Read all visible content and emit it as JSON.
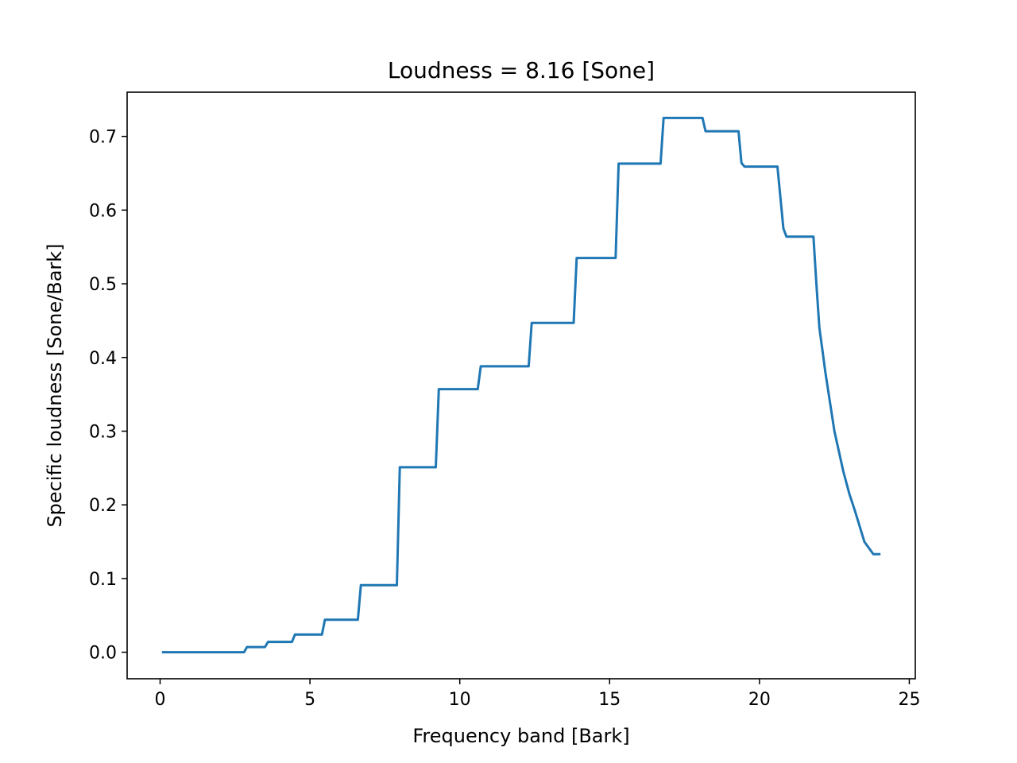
{
  "chart_data": {
    "type": "line",
    "title": "Loudness = 8.16 [Sone]",
    "xlabel": "Frequency band [Bark]",
    "ylabel": "Specific loudness [Sone/Bark]",
    "xlim": [
      -1.1,
      25.2
    ],
    "ylim": [
      -0.036,
      0.76
    ],
    "xticks": [
      0,
      5,
      10,
      15,
      20,
      25
    ],
    "yticks": [
      0.0,
      0.1,
      0.2,
      0.3,
      0.4,
      0.5,
      0.6,
      0.7
    ],
    "xtick_labels": [
      "0",
      "5",
      "10",
      "15",
      "20",
      "25"
    ],
    "ytick_labels": [
      "0.0",
      "0.1",
      "0.2",
      "0.3",
      "0.4",
      "0.5",
      "0.6",
      "0.7"
    ],
    "grid": false,
    "legend": "none",
    "color": "#1f77b4",
    "series": [
      {
        "x": [
          0.1,
          2.8,
          2.9,
          3.5,
          3.6,
          4.4,
          4.5,
          5.4,
          5.5,
          6.6,
          6.7,
          7.9,
          8.0,
          9.2,
          9.3,
          10.6,
          10.7,
          12.3,
          12.4,
          13.8,
          13.9,
          15.2,
          15.3,
          16.7,
          16.8,
          18.1,
          18.2,
          19.3,
          19.4,
          19.5,
          20.6,
          20.8,
          20.9,
          21.8,
          21.9,
          22.0,
          22.1,
          22.2,
          22.5,
          22.8,
          23.0,
          23.2,
          23.5,
          23.8,
          24.0
        ],
        "y": [
          0.0,
          0.0,
          0.007,
          0.007,
          0.014,
          0.014,
          0.024,
          0.024,
          0.044,
          0.044,
          0.091,
          0.091,
          0.251,
          0.251,
          0.357,
          0.357,
          0.388,
          0.388,
          0.447,
          0.447,
          0.535,
          0.535,
          0.663,
          0.663,
          0.725,
          0.725,
          0.707,
          0.707,
          0.664,
          0.659,
          0.659,
          0.575,
          0.564,
          0.564,
          0.5,
          0.44,
          0.41,
          0.38,
          0.3,
          0.245,
          0.215,
          0.19,
          0.15,
          0.133,
          0.133
        ]
      }
    ]
  }
}
